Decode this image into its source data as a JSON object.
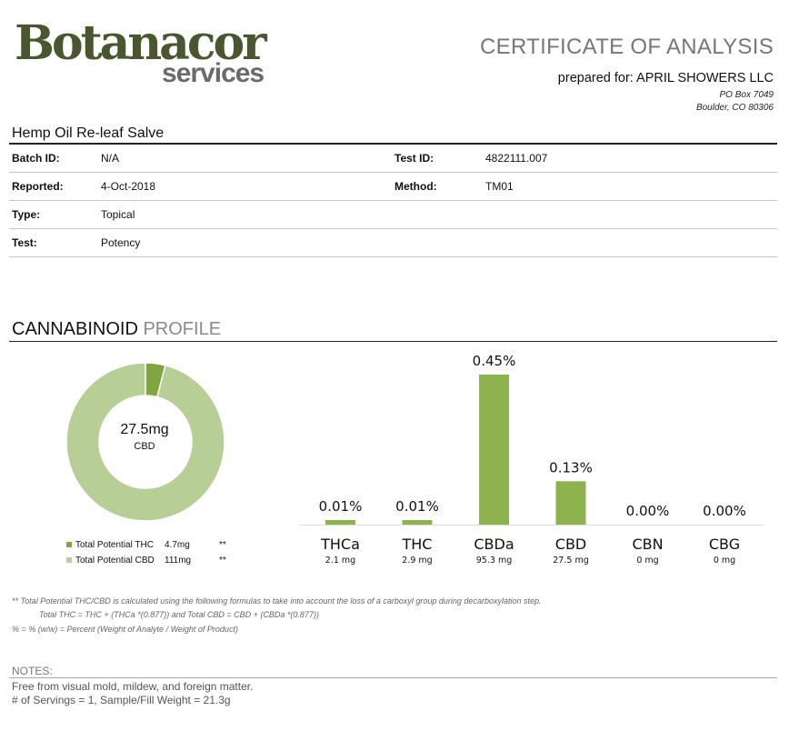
{
  "header": {
    "logo_main": "Botanacor",
    "logo_sub": "services",
    "title": "CERTIFICATE OF ANALYSIS",
    "prepared_for": "prepared for: APRIL SHOWERS LLC",
    "address_line1": "PO Box 7049",
    "address_line2": "Boulder, CO 80306"
  },
  "product": {
    "name": "Hemp Oil Re-leaf  Salve",
    "fields": {
      "batch_label": "Batch ID:",
      "batch_value": "N/A",
      "testid_label": "Test ID:",
      "testid_value": "4822111.007",
      "reported_label": "Reported:",
      "reported_value": "4-Oct-2018",
      "method_label": "Method:",
      "method_value": "TM01",
      "type_label": "Type:",
      "type_value": "Topical",
      "test_label": "Test:",
      "test_value": "Potency"
    }
  },
  "profile": {
    "title_dark": "CANNABINOID",
    "title_light": "PROFILE",
    "donut_center_value": "27.5mg",
    "donut_center_label": "CBD",
    "legend": [
      {
        "label": "Total Potential THC",
        "value": "4.7mg",
        "mark": "**",
        "color": "#7fa63f"
      },
      {
        "label": "Total Potential CBD",
        "value": "111mg",
        "mark": "**",
        "color": "#b7cf96"
      }
    ]
  },
  "chart_data": [
    {
      "type": "pie",
      "labels": [
        "Total Potential THC",
        "Total Potential CBD"
      ],
      "values": [
        4.7,
        111
      ],
      "units": "mg",
      "colors": [
        "#7fa63f",
        "#b7cf96"
      ]
    },
    {
      "type": "bar",
      "categories": [
        "THCa",
        "THC",
        "CBDa",
        "CBD",
        "CBN",
        "CBG"
      ],
      "values": [
        0.01,
        0.01,
        0.45,
        0.13,
        0.0,
        0.0
      ],
      "value_labels": [
        "0.01%",
        "0.01%",
        "0.45%",
        "0.13%",
        "0.00%",
        "0.00%"
      ],
      "mg_labels": [
        "2.1 mg",
        "2.9 mg",
        "95.3 mg",
        "27.5 mg",
        "0 mg",
        "0 mg"
      ],
      "bar_color": "#8db34f",
      "ylim": [
        0,
        0.45
      ]
    }
  ],
  "footnotes": {
    "line1": "** Total Potential THC/CBD is calculated using the following formulas to take into account the loss of a carboxyl group during decarboxylation step.",
    "line2": "Total THC = THC + (THCa *(0.877)) and Total CBD = CBD + (CBDa *(0.877))",
    "line3": "% = % (w/w) = Percent (Weight of Analyte / Weight of Product)"
  },
  "notes": {
    "title": "NOTES:",
    "line1": "Free from visual mold, mildew, and foreign matter.",
    "line2": "# of Servings = 1, Sample/Fill Weight = 21.3g"
  }
}
